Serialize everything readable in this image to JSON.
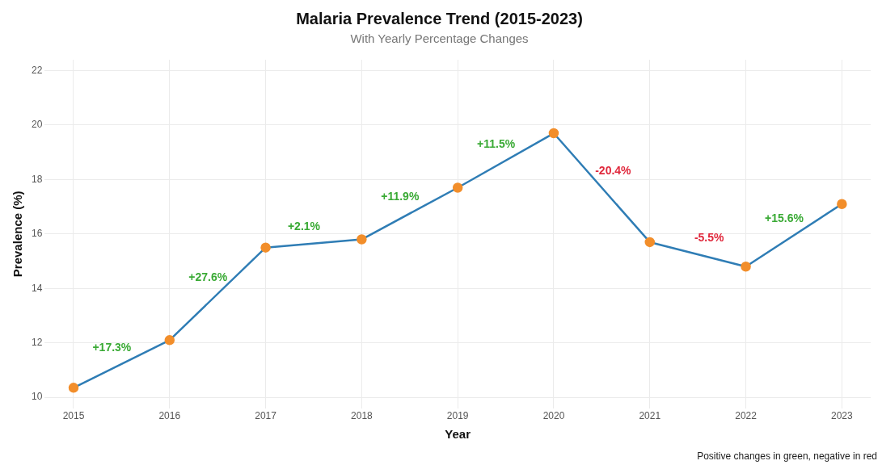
{
  "chart_data": {
    "type": "line",
    "title": "Malaria Prevalence Trend (2015-2023)",
    "subtitle": "With Yearly Percentage Changes",
    "xlabel": "Year",
    "ylabel": "Prevalence (%)",
    "x": [
      2015,
      2016,
      2017,
      2018,
      2019,
      2020,
      2021,
      2022,
      2023
    ],
    "series": [
      {
        "color": "#2f7db5",
        "values": [
          10.35,
          12.1,
          15.5,
          15.8,
          17.7,
          19.7,
          15.7,
          14.8,
          17.1
        ]
      }
    ],
    "xlim": [
      2014.7,
      2023.3
    ],
    "xticks": [
      2015,
      2016,
      2017,
      2018,
      2019,
      2020,
      2021,
      2022,
      2023
    ],
    "ylim": [
      9.6,
      22.4
    ],
    "yticks": [
      10,
      12,
      14,
      16,
      18,
      20,
      22
    ],
    "grid": true,
    "legend": false,
    "marker": "circle",
    "line_style": "solid",
    "annotations": [
      "+17.3%",
      "+27.6%",
      "+2.1%",
      "+11.9%",
      "+11.5%",
      "-20.4%",
      "-5.5%",
      "+15.6%",
      "Positive changes in green, negative in red"
    ]
  }
}
